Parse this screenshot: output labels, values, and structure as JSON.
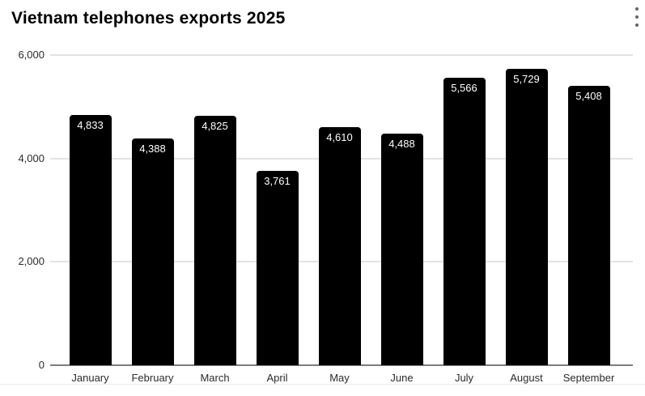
{
  "header": {
    "title": "Vietnam telephones exports 2025",
    "menu_icon": "kebab-menu-icon"
  },
  "chart_data": {
    "type": "bar",
    "title": "Vietnam telephones exports 2025",
    "categories": [
      "January",
      "February",
      "March",
      "April",
      "May",
      "June",
      "July",
      "August",
      "September"
    ],
    "values": [
      4833,
      4388,
      4825,
      3761,
      4610,
      4488,
      5566,
      5729,
      5408
    ],
    "value_labels": [
      "4,833",
      "4,388",
      "4,825",
      "3,761",
      "4,610",
      "4,488",
      "5,566",
      "5,729",
      "5,408"
    ],
    "xlabel": "",
    "ylabel": "",
    "ylim": [
      0,
      6000
    ],
    "yticks": [
      0,
      2000,
      4000,
      6000
    ],
    "ytick_labels": [
      "0",
      "2,000",
      "4,000",
      "6,000"
    ],
    "grid": true,
    "legend": "none",
    "annotation_position": "inside-top"
  },
  "colors": {
    "background": "#ffffff",
    "bar": "#000000",
    "bar_label_text": "#ffffff",
    "gridline": "#e3e3e3",
    "baseline": "#7d7d7d",
    "axis_text": "#2b2b2b",
    "title_text": "#000000",
    "menu_icon": "#666666",
    "bottom_divider": "#ececec"
  }
}
